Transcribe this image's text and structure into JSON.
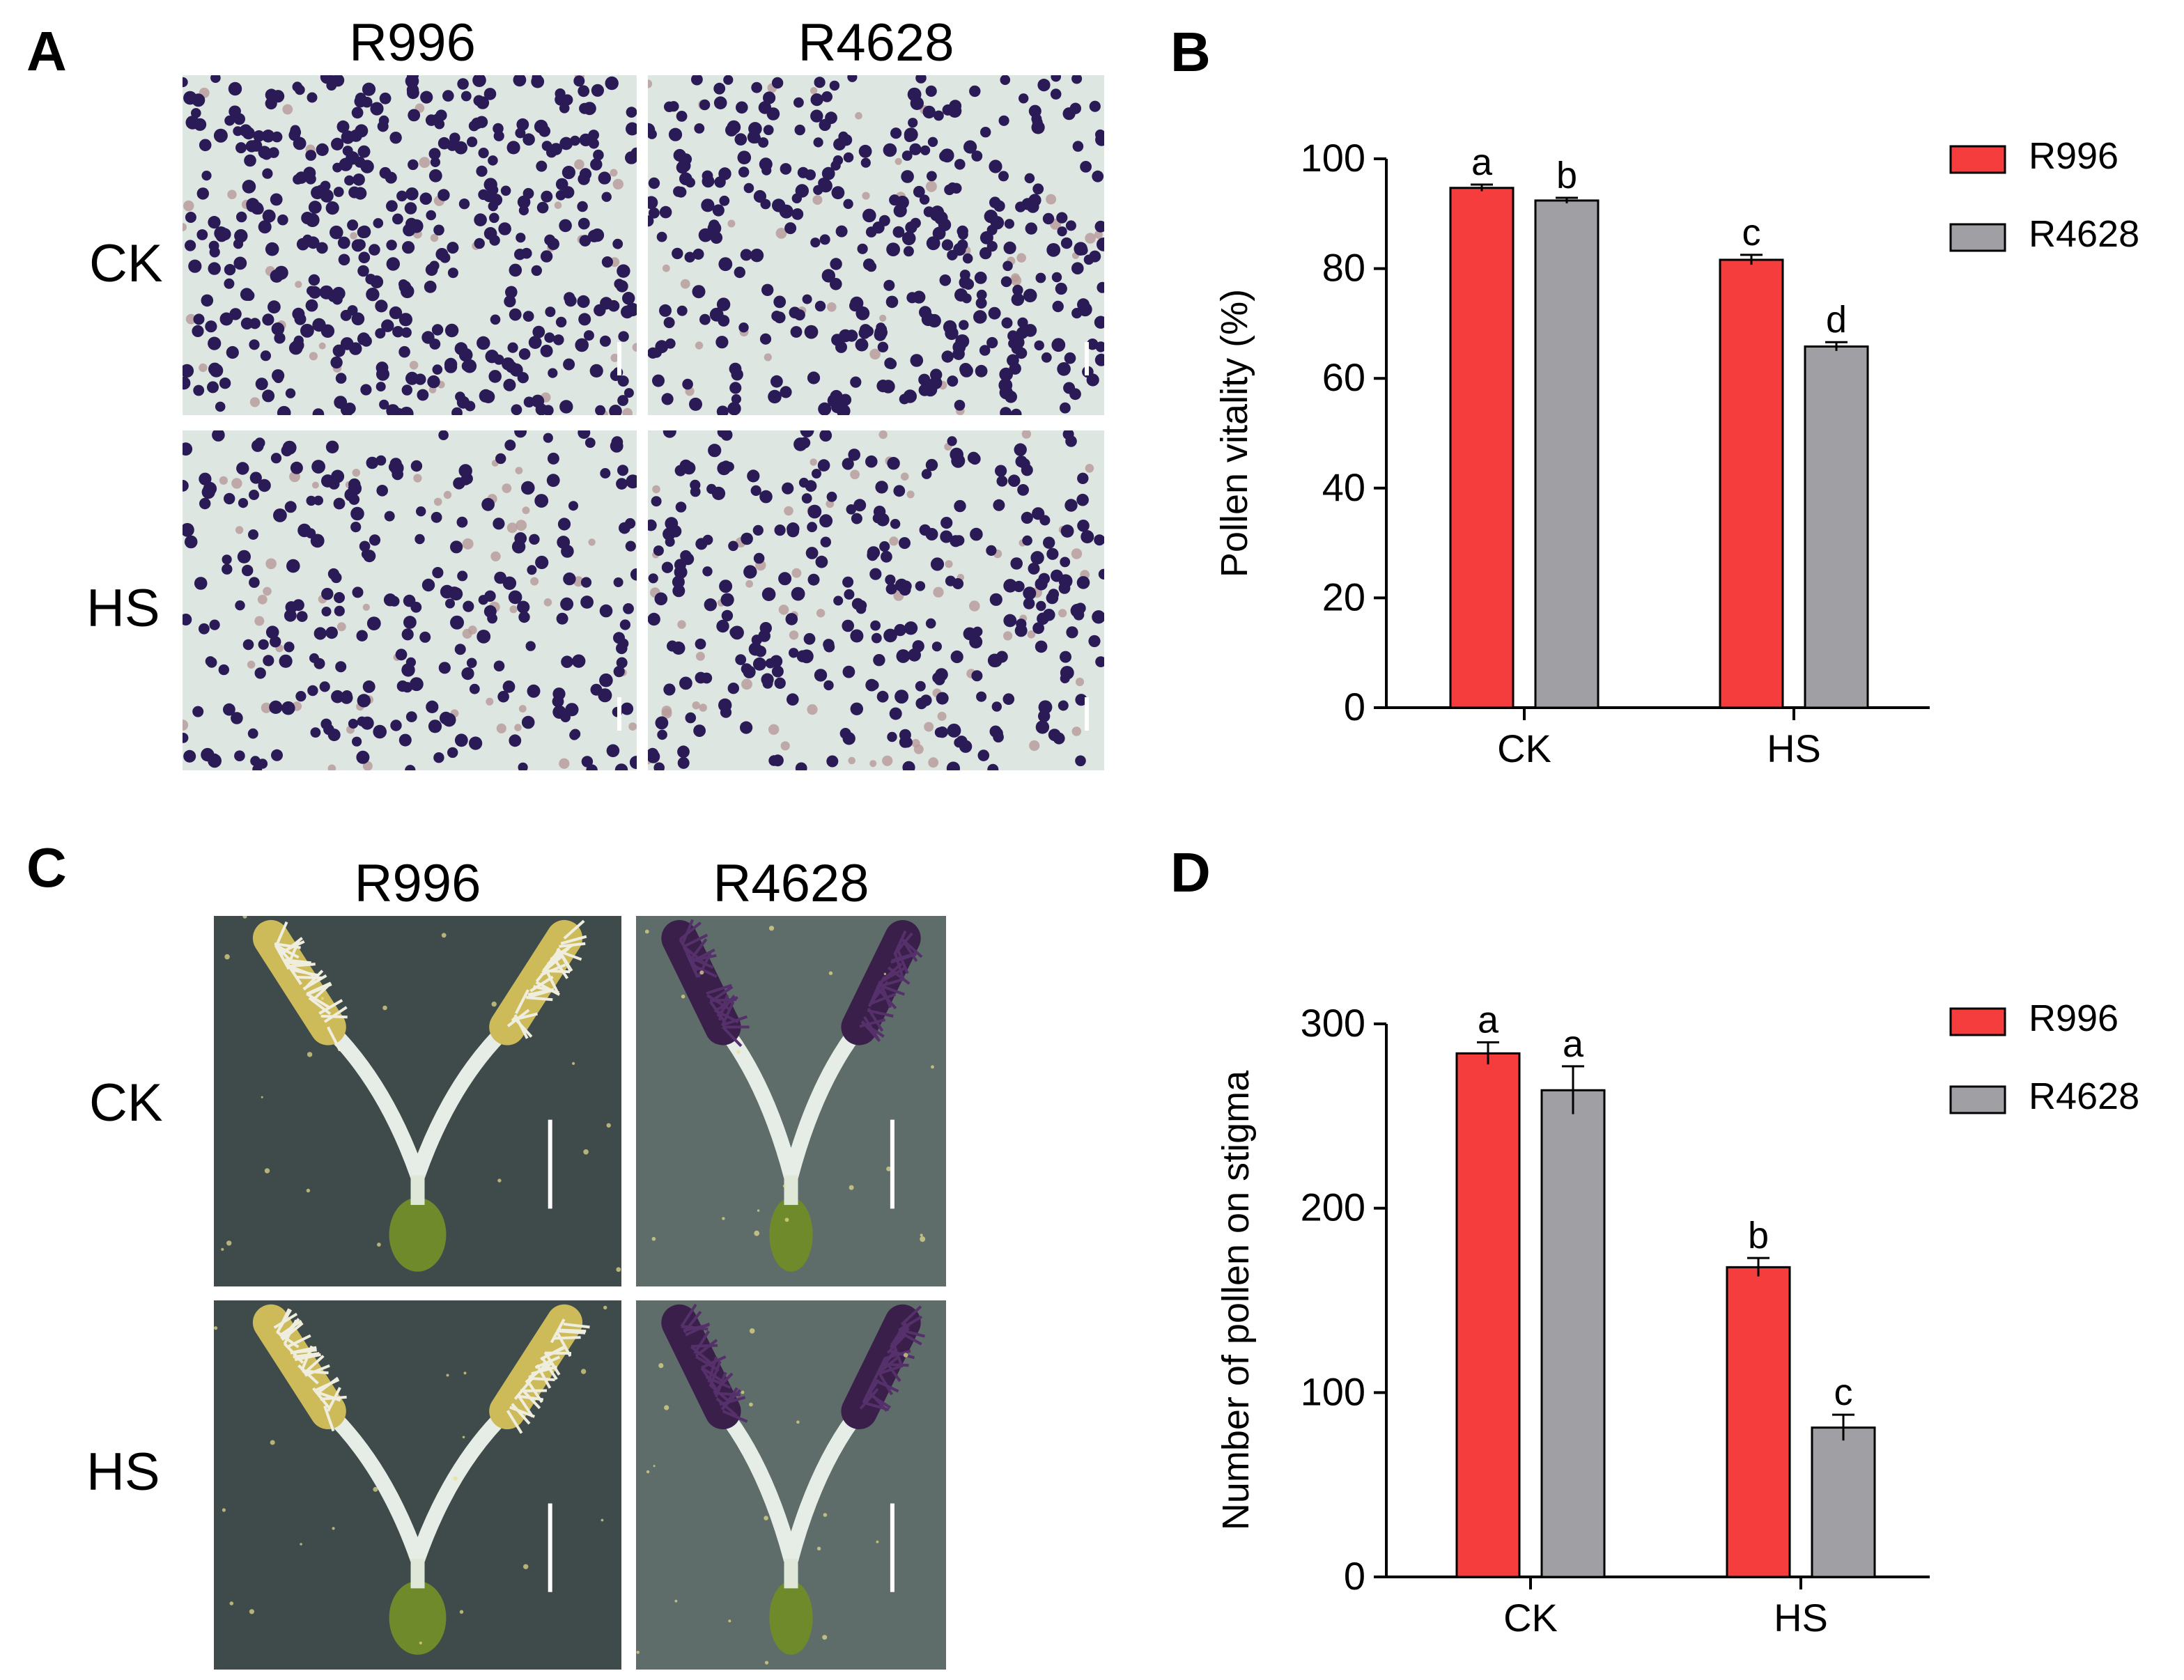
{
  "panel_a": {
    "letter": "A",
    "columns": [
      "R996",
      "R4628"
    ],
    "rows": [
      "CK",
      "HS"
    ]
  },
  "panel_c": {
    "letter": "C",
    "columns": [
      "R996",
      "R4628"
    ],
    "rows": [
      "CK",
      "HS"
    ]
  },
  "colors": {
    "r996": "#f53d3d",
    "r4628": "#a0a0a4",
    "pollen_stained": "#2a1a55",
    "pollen_unstained": "#b89a9a",
    "slide_bg": "#dde6e0",
    "stigma_bg": "#5f6d6a",
    "stigma_bg_dark": "#3f4a4a",
    "stigma_yellow": "#cdbb5a",
    "stigma_purple": "#3a1f4a"
  },
  "chart_data": [
    {
      "panel": "B",
      "type": "bar",
      "title": "",
      "categories": [
        "CK",
        "HS"
      ],
      "series": [
        {
          "name": "R996",
          "values": [
            94.7,
            81.6
          ],
          "errors": [
            0.6,
            0.9
          ],
          "letters": [
            "a",
            "c"
          ]
        },
        {
          "name": "R4628",
          "values": [
            92.4,
            65.8
          ],
          "errors": [
            0.5,
            0.8
          ],
          "letters": [
            "b",
            "d"
          ]
        }
      ],
      "xlabel": "",
      "ylabel": "Pollen vitality (%)",
      "ylim": [
        0,
        100
      ],
      "yticks": [
        0,
        20,
        40,
        60,
        80,
        100
      ],
      "legend": "top-right",
      "grid": false
    },
    {
      "panel": "D",
      "type": "bar",
      "title": "",
      "categories": [
        "CK",
        "HS"
      ],
      "series": [
        {
          "name": "R996",
          "values": [
            284,
            168
          ],
          "errors": [
            6,
            5
          ],
          "letters": [
            "a",
            "b"
          ]
        },
        {
          "name": "R4628",
          "values": [
            264,
            81
          ],
          "errors": [
            13,
            7
          ],
          "letters": [
            "a",
            "c"
          ]
        }
      ],
      "xlabel": "",
      "ylabel": "Number of pollen on stigma",
      "ylim": [
        0,
        300
      ],
      "yticks": [
        0,
        100,
        200,
        300
      ],
      "legend": "top-right",
      "grid": false
    }
  ]
}
